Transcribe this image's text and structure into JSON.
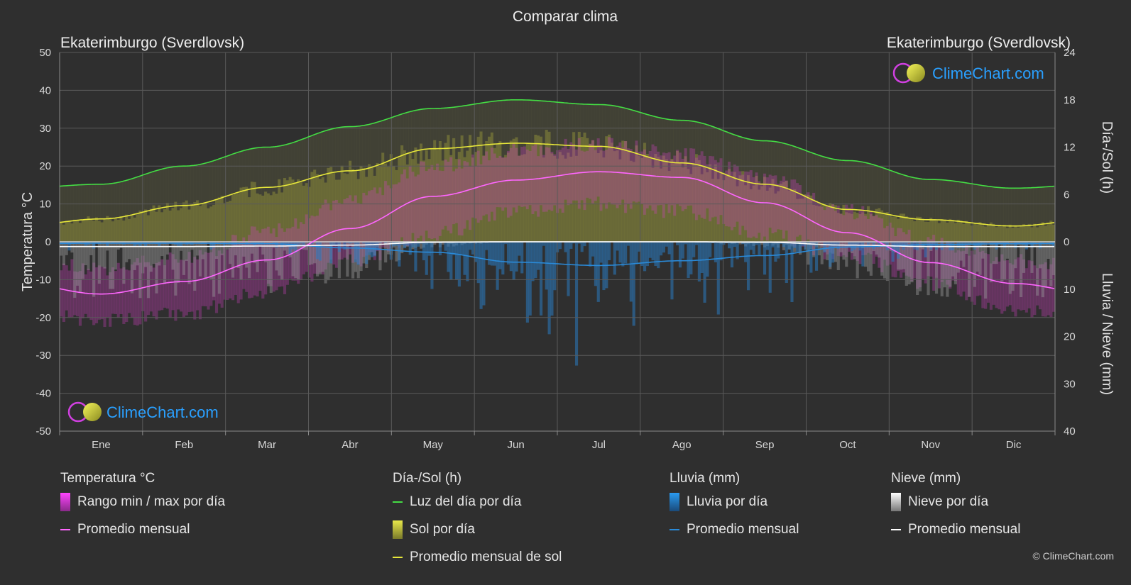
{
  "title": "Comparar clima",
  "location_left": "Ekaterimburgo (Sverdlovsk)",
  "location_right": "Ekaterimburgo (Sverdlovsk)",
  "y_left_label": "Temperatura °C",
  "y_right_top_label": "Día-/Sol (h)",
  "y_right_bottom_label": "Lluvia / Nieve (mm)",
  "logo_text": "ClimeChart.com",
  "copyright": "© ClimeChart.com",
  "colors": {
    "background": "#2f2f2f",
    "daylight": "#44dd44",
    "sunshine": "#e8e83a",
    "temperature": "#ff66ff",
    "rain": "#2a8ad8",
    "snow": "#ffffff",
    "logo": "#2aa0ff"
  },
  "legend": {
    "temperature": {
      "title": "Temperatura °C",
      "items": [
        {
          "label": "Rango min / max por día",
          "swatch": "box",
          "color": "#e040e0"
        },
        {
          "label": "Promedio mensual",
          "swatch": "line",
          "color": "#ff66ff"
        }
      ]
    },
    "sun": {
      "title": "Día-/Sol (h)",
      "items": [
        {
          "label": "Luz del día por día",
          "swatch": "line",
          "color": "#44dd44"
        },
        {
          "label": "Sol por día",
          "swatch": "box",
          "color": "#c8c83a"
        },
        {
          "label": "Promedio mensual de sol",
          "swatch": "line",
          "color": "#e8e83a"
        }
      ]
    },
    "rain": {
      "title": "Lluvia (mm)",
      "items": [
        {
          "label": "Lluvia por día",
          "swatch": "box",
          "color": "#2a8ad8"
        },
        {
          "label": "Promedio mensual",
          "swatch": "line",
          "color": "#2a8ad8"
        }
      ]
    },
    "snow": {
      "title": "Nieve (mm)",
      "items": [
        {
          "label": "Nieve por día",
          "swatch": "box",
          "color": "#d8d8d8"
        },
        {
          "label": "Promedio mensual",
          "swatch": "line",
          "color": "#ffffff"
        }
      ]
    }
  },
  "chart_data": {
    "type": "line",
    "title": "Comparar clima",
    "categories": [
      "Ene",
      "Feb",
      "Mar",
      "Abr",
      "May",
      "Jun",
      "Jul",
      "Ago",
      "Sep",
      "Oct",
      "Nov",
      "Dic"
    ],
    "y_left": {
      "label": "Temperatura °C",
      "range": [
        -50,
        50
      ],
      "ticks": [
        50,
        40,
        30,
        20,
        10,
        0,
        -10,
        -20,
        -30,
        -40,
        -50
      ]
    },
    "y_right_top": {
      "label": "Día-/Sol (h)",
      "range": [
        0,
        24
      ],
      "ticks": [
        24,
        18,
        12,
        6,
        0
      ]
    },
    "y_right_bottom": {
      "label": "Lluvia / Nieve (mm)",
      "range": [
        0,
        40
      ],
      "ticks": [
        10,
        20,
        30,
        40
      ]
    },
    "grid": true,
    "series": [
      {
        "name": "Luz del día por día",
        "axis": "hours",
        "values": [
          7.3,
          9.6,
          12.0,
          14.6,
          16.9,
          18.0,
          17.4,
          15.4,
          12.8,
          10.3,
          7.9,
          6.8
        ]
      },
      {
        "name": "Promedio mensual de sol",
        "axis": "hours",
        "values": [
          2.9,
          4.6,
          6.9,
          9.0,
          11.8,
          12.5,
          12.1,
          10.0,
          7.3,
          4.1,
          2.8,
          2.0
        ]
      },
      {
        "name": "Promedio mensual",
        "axis": "temperature",
        "values": [
          -13.8,
          -10.5,
          -4.8,
          3.5,
          12.0,
          16.3,
          18.5,
          17.0,
          10.3,
          2.4,
          -5.5,
          -11.0
        ]
      },
      {
        "name": "Promedio mensual",
        "axis": "rain_mm",
        "values": [
          0.3,
          0.3,
          0.4,
          1.3,
          2.2,
          4.3,
          5.0,
          4.0,
          2.9,
          1.1,
          0.6,
          0.4
        ]
      },
      {
        "name": "Promedio mensual",
        "axis": "snow_mm",
        "values": [
          1.0,
          1.0,
          0.9,
          0.7,
          0.1,
          0.0,
          0.0,
          0.0,
          0.1,
          0.7,
          1.0,
          1.0
        ]
      }
    ],
    "temperature_range_daily": {
      "min": [
        -19,
        -17,
        -11,
        -3,
        4,
        10,
        12,
        10,
        4,
        -2,
        -9,
        -16
      ],
      "max": [
        -9,
        -6,
        1,
        9,
        18,
        22,
        24,
        21,
        15,
        6,
        -2,
        -7
      ]
    }
  }
}
